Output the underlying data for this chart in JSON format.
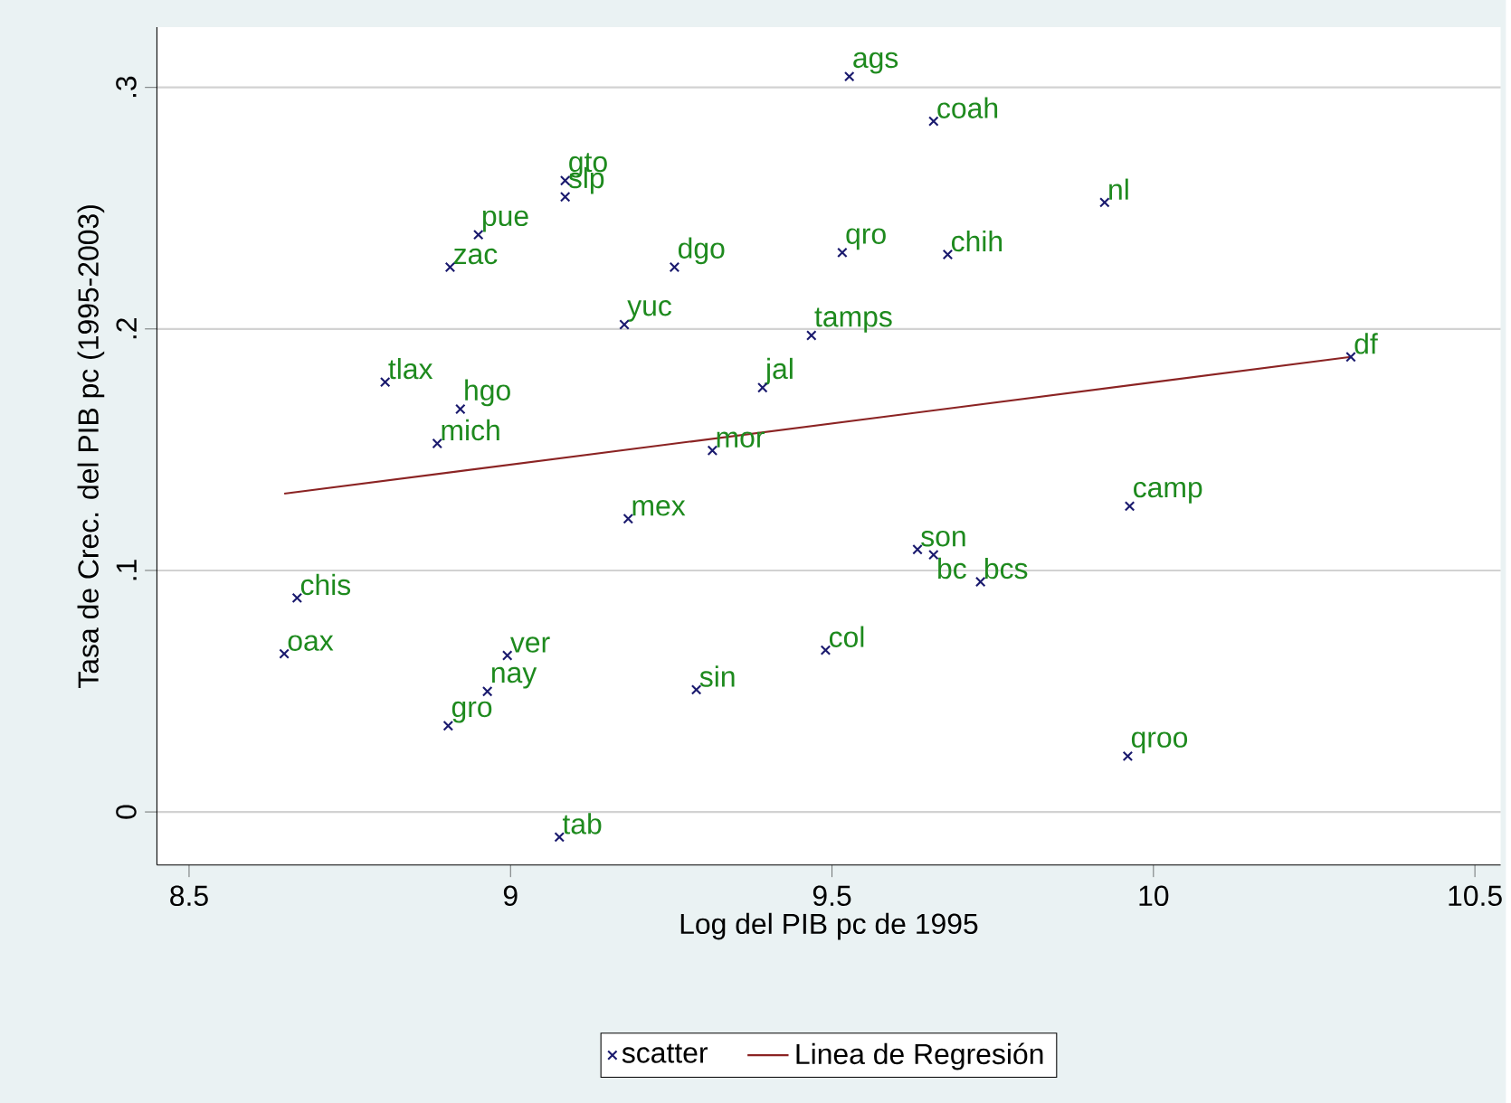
{
  "chart_data": {
    "type": "scatter",
    "xlabel": "Log del PIB pc de 1995",
    "ylabel": "Tasa de Crec. del PIB pc (1995-2003)",
    "xlim": [
      8.45,
      10.54
    ],
    "ylim": [
      -0.022,
      0.325
    ],
    "xticks": [
      8.5,
      9,
      9.5,
      10,
      10.5
    ],
    "yticks": [
      {
        "value": 0,
        "label": "0"
      },
      {
        "value": 0.1,
        "label": ".1"
      },
      {
        "value": 0.2,
        "label": ".2"
      },
      {
        "value": 0.3,
        "label": ".3"
      }
    ],
    "grid": "y",
    "legend": "bottom",
    "series": [
      {
        "name": "scatter",
        "marker": "cross",
        "color": "#1a1a6e",
        "x": [
          9.527,
          9.658,
          9.924,
          9.516,
          9.68,
          9.085,
          9.085,
          8.95,
          8.906,
          9.255,
          9.177,
          9.468,
          10.307,
          8.805,
          9.392,
          8.922,
          8.886,
          9.314,
          9.183,
          9.963,
          9.633,
          9.658,
          9.731,
          8.668,
          8.648,
          8.995,
          9.49,
          8.964,
          9.289,
          8.903,
          9.96,
          9.076
        ],
        "values": [
          0.3045,
          0.286,
          0.2524,
          0.2316,
          0.2308,
          0.2614,
          0.2547,
          0.239,
          0.2256,
          0.2256,
          0.2018,
          0.1973,
          0.1884,
          0.178,
          0.1757,
          0.1668,
          0.1526,
          0.1497,
          0.1214,
          0.1266,
          0.1087,
          0.1065,
          0.0953,
          0.0886,
          0.0655,
          0.0648,
          0.067,
          0.0499,
          0.0506,
          0.0357,
          0.0231,
          -0.0104
        ]
      },
      {
        "name": "Linea de Regresión",
        "type": "line",
        "marker": "none",
        "line_style": "solid",
        "color": "#8b2323",
        "x": [
          8.648,
          10.307
        ],
        "values": [
          0.1318,
          0.1884
        ]
      }
    ],
    "annotations": [
      {
        "text": "ags",
        "x": 9.527,
        "y": 0.3045
      },
      {
        "text": "coah",
        "x": 9.658,
        "y": 0.286
      },
      {
        "text": "nl",
        "x": 9.924,
        "y": 0.2524
      },
      {
        "text": "qro",
        "x": 9.516,
        "y": 0.2316
      },
      {
        "text": "chih",
        "x": 9.68,
        "y": 0.2308
      },
      {
        "text": "gto",
        "x": 9.085,
        "y": 0.2614
      },
      {
        "text": "slp",
        "x": 9.085,
        "y": 0.2547
      },
      {
        "text": "pue",
        "x": 8.95,
        "y": 0.239
      },
      {
        "text": "zac",
        "x": 8.906,
        "y": 0.2256
      },
      {
        "text": "dgo",
        "x": 9.255,
        "y": 0.2256
      },
      {
        "text": "yuc",
        "x": 9.177,
        "y": 0.2018
      },
      {
        "text": "tamps",
        "x": 9.468,
        "y": 0.1973
      },
      {
        "text": "df",
        "x": 10.307,
        "y": 0.1884
      },
      {
        "text": "tlax",
        "x": 8.805,
        "y": 0.178
      },
      {
        "text": "jal",
        "x": 9.392,
        "y": 0.1757
      },
      {
        "text": "hgo",
        "x": 8.922,
        "y": 0.1668
      },
      {
        "text": "mich",
        "x": 8.886,
        "y": 0.1526
      },
      {
        "text": "mor",
        "x": 9.314,
        "y": 0.1497
      },
      {
        "text": "mex",
        "x": 9.183,
        "y": 0.1214
      },
      {
        "text": "camp",
        "x": 9.963,
        "y": 0.1266
      },
      {
        "text": "son",
        "x": 9.633,
        "y": 0.1087
      },
      {
        "text": "bc",
        "x": 9.658,
        "y": 0.1065
      },
      {
        "text": "bcs",
        "x": 9.731,
        "y": 0.0953
      },
      {
        "text": "chis",
        "x": 8.668,
        "y": 0.0886
      },
      {
        "text": "oax",
        "x": 8.648,
        "y": 0.0655
      },
      {
        "text": "ver",
        "x": 8.995,
        "y": 0.0648
      },
      {
        "text": "col",
        "x": 9.49,
        "y": 0.067
      },
      {
        "text": "nay",
        "x": 8.964,
        "y": 0.0499
      },
      {
        "text": "sin",
        "x": 9.289,
        "y": 0.0506
      },
      {
        "text": "gro",
        "x": 8.903,
        "y": 0.0357
      },
      {
        "text": "qroo",
        "x": 9.96,
        "y": 0.0231
      },
      {
        "text": "tab",
        "x": 9.076,
        "y": -0.0104
      }
    ]
  }
}
